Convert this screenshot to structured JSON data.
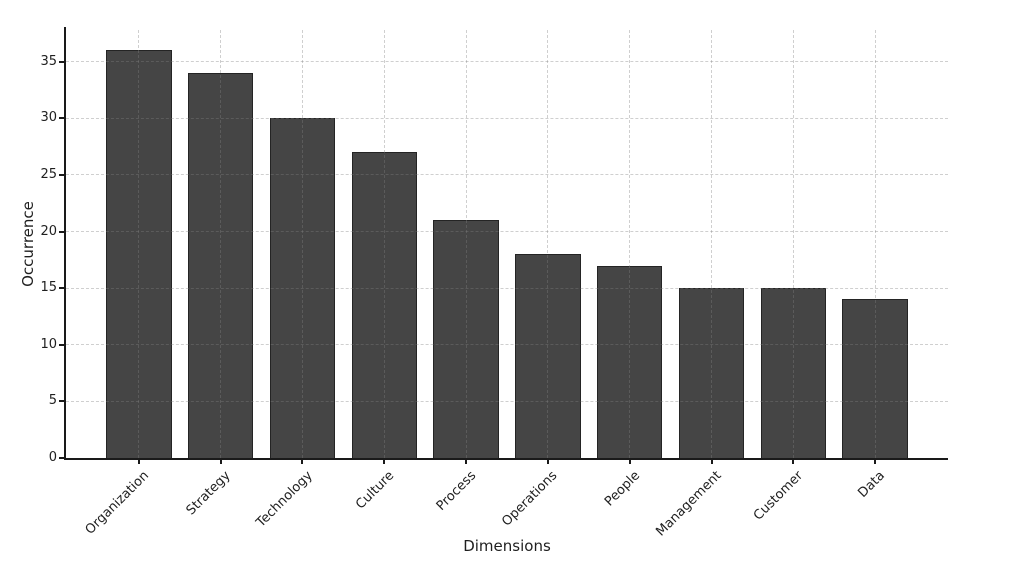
{
  "chart_data": {
    "type": "bar",
    "title": "",
    "xlabel": "Dimensions",
    "ylabel": "Occurrence",
    "categories": [
      "Organization",
      "Strategy",
      "Technology",
      "Culture",
      "Process",
      "Operations",
      "People",
      "Management",
      "Customer",
      "Data"
    ],
    "values": [
      36,
      34,
      30,
      27,
      21,
      18,
      17,
      15,
      15,
      14
    ],
    "yticks": [
      0,
      5,
      10,
      15,
      20,
      25,
      30,
      35
    ],
    "ylim": [
      0,
      37.8
    ],
    "grid": "dashed-both-axes",
    "legend": "none",
    "x_tick_rotation_deg": 45,
    "colors": {
      "bar_fill": "#454545",
      "bar_edge": "#242424",
      "axis": "#1a1a1a",
      "text": "#1f1f1f",
      "background": "#ffffff"
    }
  }
}
